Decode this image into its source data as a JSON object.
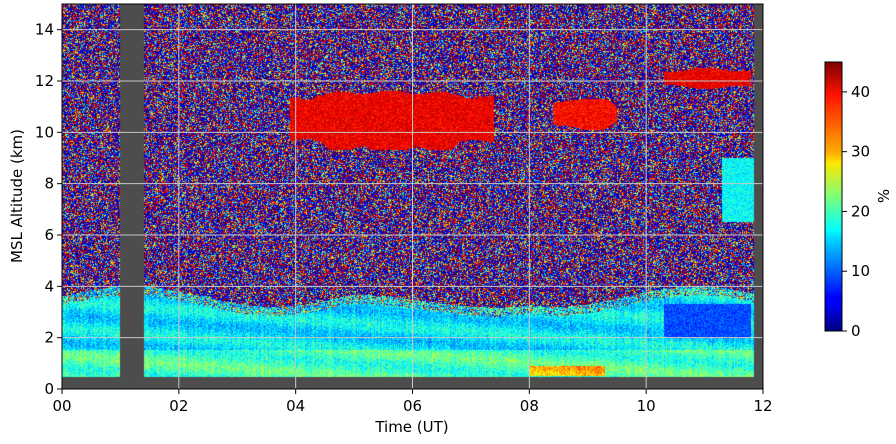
{
  "chart_data": {
    "type": "heatmap",
    "title": "",
    "xlabel": "Time (UT)",
    "ylabel": "MSL Altitude (km)",
    "xlim": [
      0,
      12
    ],
    "ylim": [
      0,
      15
    ],
    "x_ticks": [
      0,
      2,
      4,
      6,
      8,
      10,
      12
    ],
    "x_tick_labels": [
      "00",
      "02",
      "04",
      "06",
      "08",
      "10",
      "12"
    ],
    "y_ticks": [
      0,
      2,
      4,
      6,
      8,
      10,
      12,
      14
    ],
    "y_tick_labels": [
      "0",
      "2",
      "4",
      "6",
      "8",
      "10",
      "12",
      "14"
    ],
    "grid": true,
    "colormap": "jet",
    "missing_data_color": "#4d4d4d",
    "colorbar": {
      "label": "%",
      "range": [
        0,
        45
      ],
      "ticks": [
        0,
        10,
        20,
        30,
        40
      ],
      "tick_labels": [
        "0",
        "10",
        "20",
        "30",
        "40"
      ]
    },
    "missing_data_intervals_h": [
      [
        1.0,
        1.4
      ],
      [
        11.85,
        12.0
      ]
    ],
    "missing_data_altitude_below_km": 0.45,
    "regions": [
      {
        "t": [
          0.0,
          12.0
        ],
        "z": [
          0.45,
          1.5
        ],
        "value": 20
      },
      {
        "t": [
          0.0,
          12.0
        ],
        "z": [
          1.5,
          3.5
        ],
        "value": 16
      },
      {
        "t": [
          8.0,
          9.3
        ],
        "z": [
          0.5,
          0.9
        ],
        "value": 31
      },
      {
        "t": [
          10.3,
          11.8
        ],
        "z": [
          2.0,
          3.3
        ],
        "value": 9
      },
      {
        "t": [
          3.9,
          7.4
        ],
        "z": [
          9.3,
          11.6
        ],
        "value": 40
      },
      {
        "t": [
          8.4,
          9.5
        ],
        "z": [
          10.1,
          11.3
        ],
        "value": 39
      },
      {
        "t": [
          10.3,
          11.8
        ],
        "z": [
          11.7,
          12.5
        ],
        "value": 40
      },
      {
        "t": [
          11.3,
          12.0
        ],
        "z": [
          6.5,
          9.0
        ],
        "value": 17
      }
    ]
  }
}
